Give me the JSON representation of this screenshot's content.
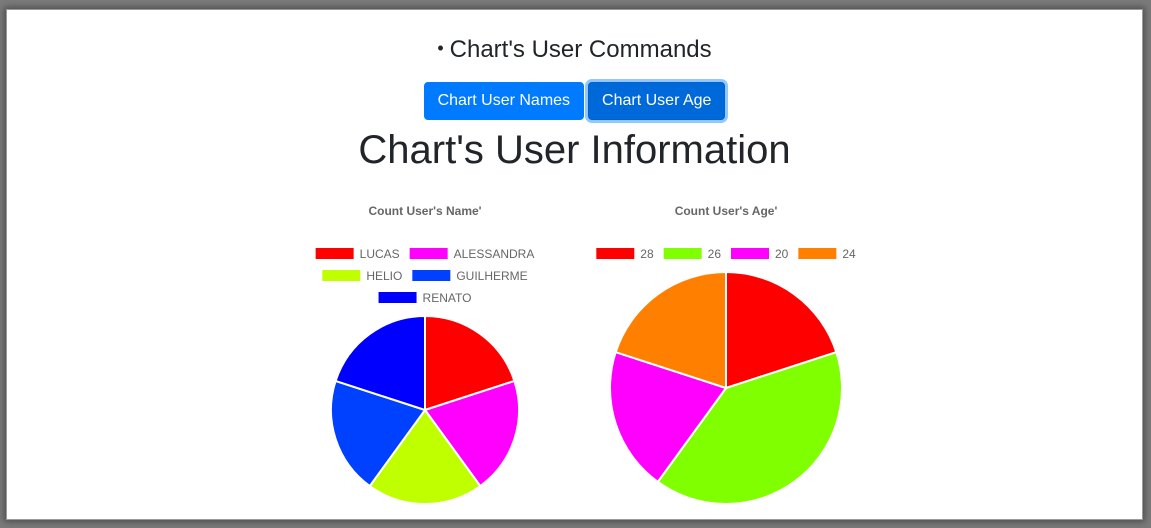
{
  "header": {
    "commands_title": "Chart's User Commands",
    "bullet": "•"
  },
  "buttons": {
    "names_label": "Chart User Names",
    "age_label": "Chart User Age"
  },
  "main": {
    "title": "Chart's User Information"
  },
  "chart_data": [
    {
      "type": "pie",
      "title": "Count User's Name'",
      "categories": [
        "LUCAS",
        "ALESSANDRA",
        "HELIO",
        "GUILHERME",
        "RENATO"
      ],
      "values": [
        1,
        1,
        1,
        1,
        1
      ],
      "colors": [
        "#ff0000",
        "#ff00ff",
        "#bfff00",
        "#0040ff",
        "#0000ff"
      ],
      "legend": "top"
    },
    {
      "type": "pie",
      "title": "Count User's Age'",
      "categories": [
        "28",
        "26",
        "20",
        "24"
      ],
      "values": [
        1,
        2,
        1,
        1
      ],
      "colors": [
        "#ff0000",
        "#80ff00",
        "#ff00ff",
        "#ff8000"
      ],
      "legend": "top"
    }
  ]
}
